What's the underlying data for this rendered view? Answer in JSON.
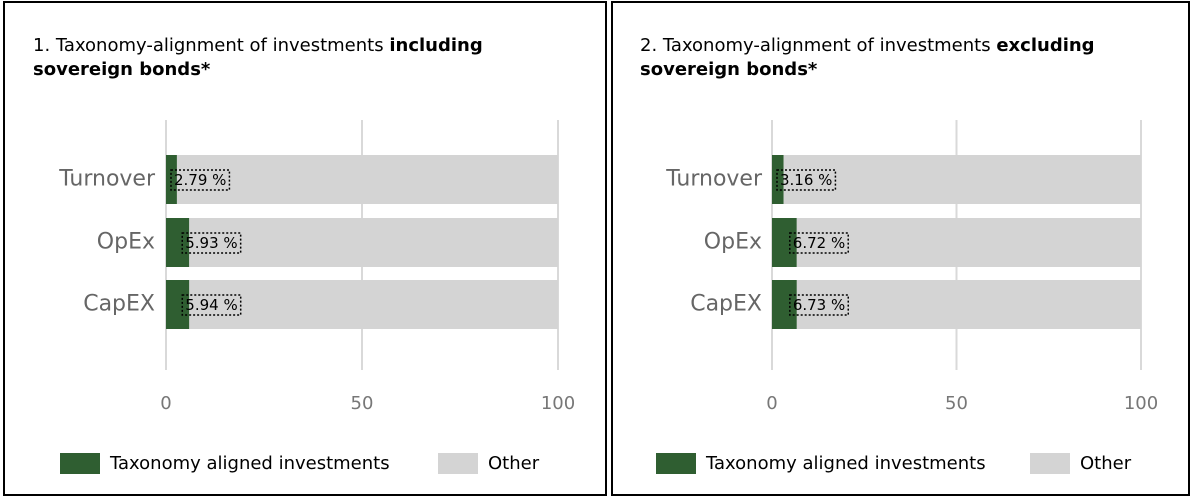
{
  "chart_data": [
    {
      "type": "bar",
      "orientation": "horizontal",
      "stacked": true,
      "title": "1. Taxonomy-alignment of investments",
      "title_emphasis": "including sovereign bonds*",
      "categories": [
        "Turnover",
        "OpEx",
        "CapEX"
      ],
      "series": [
        {
          "name": "Taxonomy aligned investments",
          "color": "#2f5e31",
          "values": [
            2.79,
            5.93,
            5.94
          ],
          "value_labels": [
            "2.79 %",
            "5.93 %",
            "5.94 %"
          ]
        },
        {
          "name": "Other",
          "color": "#d4d4d4",
          "values": [
            97.21,
            94.07,
            94.06
          ]
        }
      ],
      "xlim": [
        0,
        100
      ],
      "xticks": [
        0,
        50,
        100
      ],
      "grid": true,
      "legend": "bottom"
    },
    {
      "type": "bar",
      "orientation": "horizontal",
      "stacked": true,
      "title": "2. Taxonomy-alignment of investments",
      "title_emphasis": "excluding sovereign bonds*",
      "categories": [
        "Turnover",
        "OpEx",
        "CapEX"
      ],
      "series": [
        {
          "name": "Taxonomy aligned investments",
          "color": "#2f5e31",
          "values": [
            3.16,
            6.72,
            6.73
          ],
          "value_labels": [
            "3.16 %",
            "6.72 %",
            "6.73 %"
          ]
        },
        {
          "name": "Other",
          "color": "#d4d4d4",
          "values": [
            96.84,
            93.28,
            93.27
          ]
        }
      ],
      "xlim": [
        0,
        100
      ],
      "xticks": [
        0,
        50,
        100
      ],
      "grid": true,
      "legend": "bottom"
    }
  ]
}
